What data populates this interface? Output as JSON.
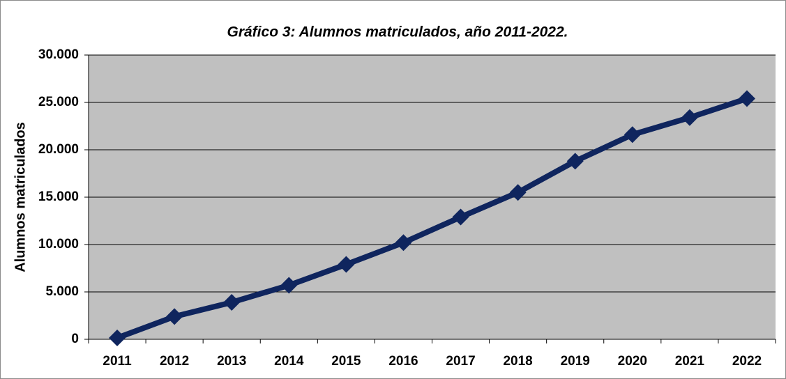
{
  "chart_data": {
    "type": "line",
    "title": "Gráfico 3: Alumnos matriculados, año 2011-2022.",
    "y_label": "Alumnos matriculados",
    "categories": [
      "2011",
      "2012",
      "2013",
      "2014",
      "2015",
      "2016",
      "2017",
      "2018",
      "2019",
      "2020",
      "2021",
      "2022"
    ],
    "series": [
      {
        "name": "Alumnos matriculados",
        "color": "#0f255e",
        "values": [
          150,
          2400,
          3900,
          5700,
          7900,
          10200,
          12900,
          15500,
          18800,
          21600,
          23400,
          25400
        ]
      }
    ],
    "ylim": [
      0,
      30000
    ],
    "yticks": [
      0,
      {
        "value": 5000,
        "label": "5.000"
      },
      {
        "value": 10000,
        "label": "10.000"
      },
      {
        "value": 15000,
        "label": "15.000"
      },
      {
        "value": 20000,
        "label": "20.000"
      },
      {
        "value": 25000,
        "label": "25.000"
      },
      {
        "value": 30000,
        "label": "30.000"
      }
    ],
    "grid": true,
    "plot_background": "#c0c0c0"
  }
}
